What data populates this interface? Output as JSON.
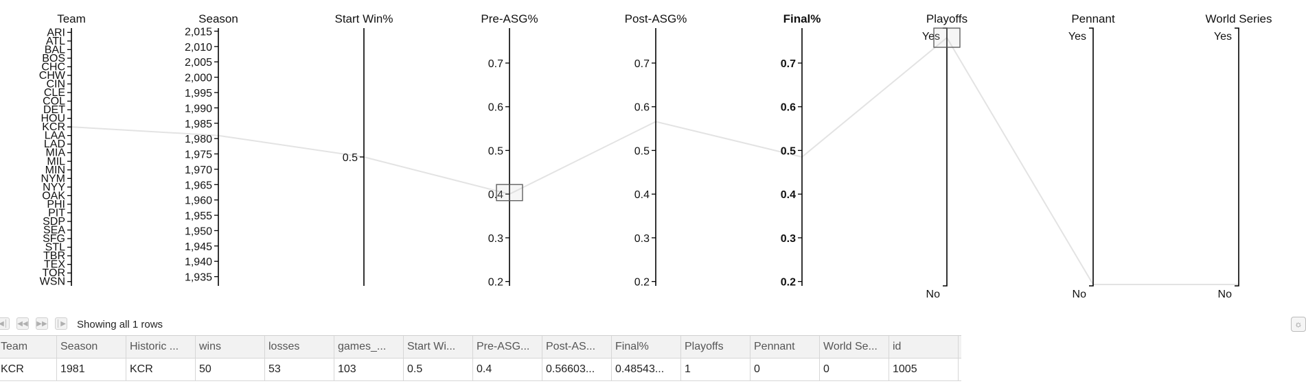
{
  "chart_data": {
    "type": "parallel-coordinates",
    "dimensions": [
      {
        "key": "team",
        "title": "Team",
        "type": "categorical",
        "categories": [
          "ARI",
          "ATL",
          "BAL",
          "BOS",
          "CHC",
          "CHW",
          "CIN",
          "CLE",
          "COL",
          "DET",
          "HOU",
          "KCR",
          "LAA",
          "LAD",
          "MIA",
          "MIL",
          "MIN",
          "NYM",
          "NYY",
          "OAK",
          "PHI",
          "PIT",
          "SDP",
          "SEA",
          "SFG",
          "STL",
          "TBR",
          "TEX",
          "TOR",
          "WSN"
        ]
      },
      {
        "key": "season",
        "title": "Season",
        "type": "numeric",
        "domain": [
          1932,
          2016
        ],
        "ticks": [
          2015,
          2010,
          2005,
          2000,
          1995,
          1990,
          1985,
          1980,
          1975,
          1970,
          1965,
          1960,
          1955,
          1950,
          1945,
          1940,
          1935
        ],
        "tick_labels": [
          "2,015",
          "2,010",
          "2,005",
          "2,000",
          "1,995",
          "1,990",
          "1,985",
          "1,980",
          "1,975",
          "1,970",
          "1,965",
          "1,960",
          "1,955",
          "1,950",
          "1,945",
          "1,940",
          "1,935"
        ]
      },
      {
        "key": "start",
        "title": "Start Win%",
        "type": "numeric",
        "domain": [
          0.47,
          0.53
        ],
        "ticks": [
          0.5
        ],
        "tick_labels": [
          "0.5"
        ]
      },
      {
        "key": "pre",
        "title": "Pre-ASG%",
        "type": "numeric",
        "domain": [
          0.19,
          0.78
        ],
        "ticks": [
          0.7,
          0.6,
          0.5,
          0.4,
          0.3,
          0.2
        ],
        "tick_labels": [
          "0.7",
          "0.6",
          "0.5",
          "0.4",
          "0.3",
          "0.2"
        ]
      },
      {
        "key": "post",
        "title": "Post-ASG%",
        "type": "numeric",
        "domain": [
          0.19,
          0.78
        ],
        "ticks": [
          0.7,
          0.6,
          0.5,
          0.4,
          0.3,
          0.2
        ],
        "tick_labels": [
          "0.7",
          "0.6",
          "0.5",
          "0.4",
          "0.3",
          "0.2"
        ]
      },
      {
        "key": "final",
        "title": "Final%",
        "type": "numeric",
        "highlight": true,
        "domain": [
          0.19,
          0.78
        ],
        "ticks": [
          0.7,
          0.6,
          0.5,
          0.4,
          0.3,
          0.2
        ],
        "tick_labels": [
          "0.7",
          "0.6",
          "0.5",
          "0.4",
          "0.3",
          "0.2"
        ]
      },
      {
        "key": "playoffs",
        "title": "Playoffs",
        "type": "binary",
        "labels": [
          "Yes",
          "No"
        ]
      },
      {
        "key": "pennant",
        "title": "Pennant",
        "type": "binary",
        "labels": [
          "Yes",
          "No"
        ]
      },
      {
        "key": "ws",
        "title": "World Series",
        "type": "binary",
        "labels": [
          "Yes",
          "No"
        ]
      }
    ],
    "records": [
      {
        "team": "KCR",
        "season": 1981,
        "start": 0.5,
        "pre": 0.4,
        "post": 0.566,
        "final": 0.485,
        "playoffs": 1,
        "pennant": 0,
        "ws": 0
      }
    ],
    "brushes": [
      {
        "dimension": "pre",
        "range": [
          0.385,
          0.422
        ]
      },
      {
        "dimension": "playoffs",
        "range": [
          0.96,
          1.04
        ]
      }
    ]
  },
  "pager": {
    "status": "Showing all 1 rows",
    "buttons": [
      "first-page",
      "previous-page",
      "next-page",
      "last-page"
    ]
  },
  "grid": {
    "columns": [
      "Team",
      "Season",
      "Historic ...",
      "wins",
      "losses",
      "games_...",
      "Start Wi...",
      "Pre-ASG...",
      "Post-AS...",
      "Final%",
      "Playoffs",
      "Pennant",
      "World Se...",
      "id"
    ],
    "rows": [
      [
        "KCR",
        "1981",
        "KCR",
        "50",
        "53",
        "103",
        "0.5",
        "0.4",
        "0.56603...",
        "0.48543...",
        "1",
        "0",
        "0",
        "1005"
      ]
    ]
  }
}
